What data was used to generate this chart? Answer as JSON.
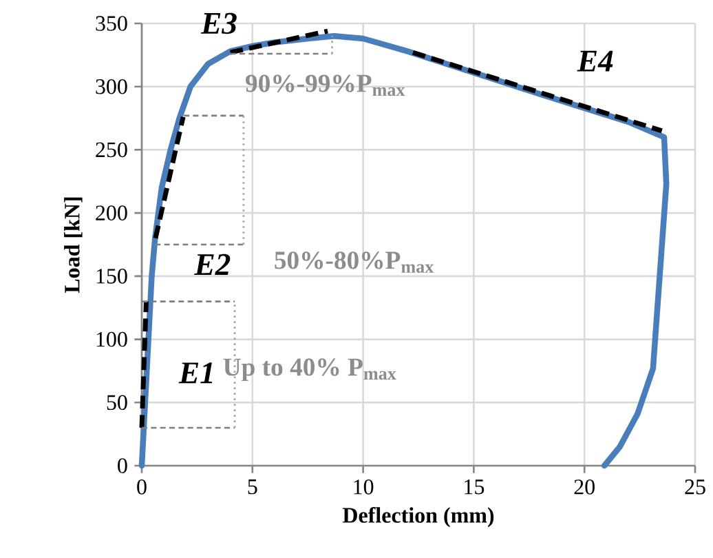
{
  "chart_data": {
    "type": "line",
    "xlabel": "Deflection (mm)",
    "ylabel": "Load [kN]",
    "xlim": [
      0,
      25
    ],
    "xticks": [
      0,
      5,
      10,
      15,
      20,
      25
    ],
    "ylim": [
      0,
      350
    ],
    "yticks": [
      0,
      50,
      100,
      150,
      200,
      250,
      300,
      350
    ],
    "grid": true,
    "marker": "none",
    "series": [
      {
        "color": "#4a7ebb",
        "line_style": "solid",
        "x": [
          0,
          0.15,
          0.3,
          0.45,
          0.6,
          0.9,
          1.3,
          1.7,
          2.2,
          3,
          4,
          5,
          6,
          7.5,
          8.7,
          10,
          12,
          15,
          18,
          20,
          22,
          23.6,
          23.7,
          23.4,
          23.1,
          22.4,
          21.6,
          20.9
        ],
        "values": [
          0,
          50,
          100,
          150,
          180,
          220,
          250,
          275,
          300,
          318,
          328,
          332,
          335,
          338,
          340,
          338,
          328,
          311,
          294,
          283,
          272,
          260,
          223,
          150,
          77,
          41,
          15,
          0
        ]
      },
      {
        "color": "#000000",
        "line_style": "dashed",
        "x": [
          0,
          0.2
        ],
        "values": [
          30,
          130
        ]
      },
      {
        "color": "#000000",
        "line_style": "dashed",
        "x": [
          0.62,
          1.87
        ],
        "values": [
          180,
          276
        ]
      },
      {
        "color": "#000000",
        "line_style": "dashed",
        "x": [
          4.0,
          8.4
        ],
        "values": [
          327,
          344
        ]
      },
      {
        "color": "#000000",
        "line_style": "dashed",
        "x": [
          12.25,
          23.5
        ],
        "values": [
          327,
          265
        ]
      },
      {
        "color": "#7f7f7f",
        "line_style": "dashed",
        "x": [
          0,
          4.2
        ],
        "values": [
          30,
          30
        ]
      },
      {
        "color": "#7f7f7f",
        "line_style": "dashed",
        "x": [
          0,
          4.2
        ],
        "values": [
          130,
          130
        ]
      },
      {
        "color": "#a6a6a6",
        "line_style": "dotted",
        "x": [
          4.2,
          4.2
        ],
        "values": [
          30,
          130
        ]
      },
      {
        "color": "#7f7f7f",
        "line_style": "dashed",
        "x": [
          0.6,
          4.6
        ],
        "values": [
          175,
          175
        ]
      },
      {
        "color": "#7f7f7f",
        "line_style": "dashed",
        "x": [
          1.9,
          4.6
        ],
        "values": [
          277,
          277
        ]
      },
      {
        "color": "#a6a6a6",
        "line_style": "dotted",
        "x": [
          4.6,
          4.6
        ],
        "values": [
          175,
          277
        ]
      },
      {
        "color": "#7f7f7f",
        "line_style": "dashed",
        "x": [
          4.0,
          8.6
        ],
        "values": [
          326,
          326
        ]
      },
      {
        "color": "#a6a6a6",
        "line_style": "dotted",
        "x": [
          8.6,
          8.6
        ],
        "values": [
          326,
          340
        ]
      }
    ],
    "annotations": [
      "E1",
      "E2",
      "E3",
      "E4",
      "Up to 40% P$_{max}$",
      "50%-80%P$_{max}$",
      "90%-99%P$_{max}$"
    ]
  }
}
